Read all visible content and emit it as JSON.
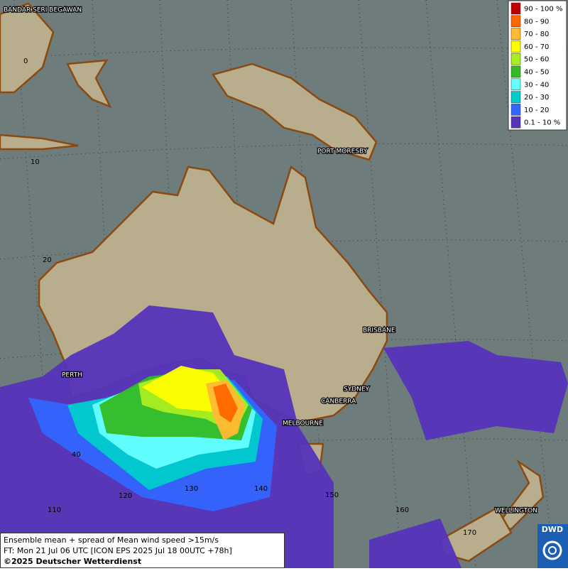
{
  "map": {
    "places": [
      "BANDAR SERI BEGAWAN",
      "PORT MORESBY",
      "BRISBANE",
      "PERTH",
      "SYDNEY",
      "CANBERRA",
      "MELBOURNE",
      "WELLINGTON"
    ],
    "grid_labels": [
      0,
      10,
      20,
      40,
      110,
      120,
      130,
      140,
      150,
      160,
      170
    ],
    "legend": [
      {
        "label": "90 - 100 %",
        "color": "#c00000"
      },
      {
        "label": "80 - 90",
        "color": "#ff6600"
      },
      {
        "label": "70 - 80",
        "color": "#ffbb33"
      },
      {
        "label": "60 - 70",
        "color": "#ffff00"
      },
      {
        "label": "50 - 60",
        "color": "#aaee22"
      },
      {
        "label": "40 - 50",
        "color": "#33bb22"
      },
      {
        "label": "30 - 40",
        "color": "#66ffff"
      },
      {
        "label": "20 - 30",
        "color": "#00cccc"
      },
      {
        "label": "10 - 20",
        "color": "#3366ff"
      },
      {
        "label": "0.1 - 10 %",
        "color": "#5533bb"
      }
    ],
    "footer": [
      "Ensemble mean + spread of Mean wind speed >15m/s",
      "FT: Mon 21 Jul 06 UTC [ICON EPS 2025 Jul 18 00UTC +78h]",
      "©2025 Deutscher Wetterdienst"
    ],
    "logo": "DWD"
  }
}
